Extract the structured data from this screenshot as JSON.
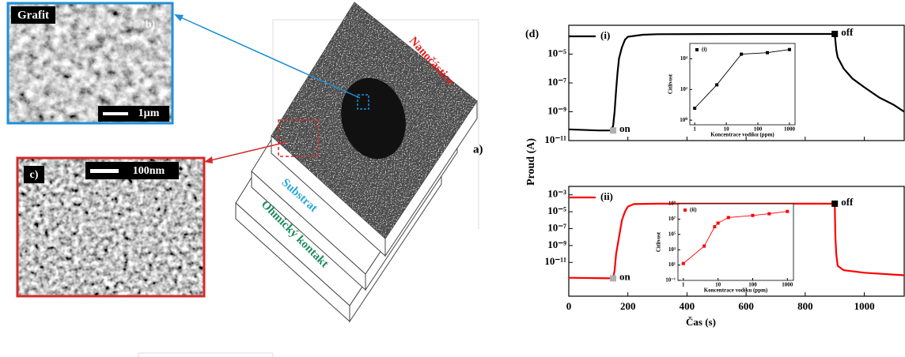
{
  "micrographs": {
    "b": {
      "tag": "Grafit",
      "label": "b)",
      "scale": "1µm"
    },
    "c": {
      "label": "c)",
      "scale": "100nm"
    }
  },
  "device": {
    "label": "a)",
    "layers": [
      "Nanočástice",
      "Substrat",
      "Ohmický kontakt"
    ]
  },
  "figure": {
    "panel_label": "(d)",
    "ylabel": "Proud (A)"
  },
  "chart_data": [
    {
      "type": "line",
      "log_y": true,
      "xtick_labels": false,
      "xlim": [
        0,
        1135
      ],
      "xticks": [
        0,
        200,
        400,
        600,
        800,
        1000
      ],
      "ylim": [
        1e-11,
        0.001
      ],
      "yticks": [
        {
          "value": 1e-11,
          "label": "10⁻¹¹"
        },
        {
          "value": 1e-09,
          "label": "10⁻⁹"
        },
        {
          "value": 1e-07,
          "label": "10⁻⁷"
        },
        {
          "value": 1e-05,
          "label": "10⁻⁵"
        }
      ],
      "x": [
        0,
        100,
        140,
        150,
        155,
        160,
        165,
        170,
        180,
        190,
        200,
        250,
        300,
        600,
        900,
        905,
        910,
        930,
        960,
        1000,
        1050,
        1100,
        1135
      ],
      "series": [
        {
          "name": "(i)",
          "color": "#000000",
          "values": [
            6e-11,
            5e-11,
            5e-11,
            1e-10,
            1e-09,
            3e-08,
            5e-07,
            5e-06,
            3e-05,
            0.0001,
            0.00016,
            0.00022,
            0.00024,
            0.00025,
            0.00025,
            2e-05,
            6e-06,
            1e-06,
            2e-07,
            5e-08,
            1e-08,
            3e-09,
            1e-09
          ]
        }
      ],
      "annotations": [
        {
          "text": "on",
          "x": 150,
          "y": 5e-11,
          "color": "#b0b0b0"
        },
        {
          "text": "off",
          "x": 900,
          "y": 0.00025,
          "color": "#000000"
        }
      ]
    },
    {
      "type": "line",
      "log_y": true,
      "xlabel": "Čas (s)",
      "xlim": [
        0,
        1135
      ],
      "xticks": [
        0,
        200,
        400,
        600,
        800,
        1000
      ],
      "ylim": [
        1e-15,
        0.01
      ],
      "yticks": [
        {
          "value": 1e-11,
          "label": "10⁻¹¹"
        },
        {
          "value": 1e-09,
          "label": "10⁻⁹"
        },
        {
          "value": 1e-07,
          "label": "10⁻⁷"
        },
        {
          "value": 1e-05,
          "label": "10⁻⁵"
        },
        {
          "value": 0.001,
          "label": "10⁻³"
        }
      ],
      "x": [
        0,
        150,
        155,
        160,
        170,
        180,
        190,
        200,
        220,
        300,
        900,
        902,
        905,
        910,
        930,
        1000,
        1135
      ],
      "series": [
        {
          "name": "(ii)",
          "color": "#ff0000",
          "values": [
            1.5e-13,
            1.3e-13,
            1e-12,
            1e-10,
            1e-08,
            1e-06,
            1e-05,
            4e-05,
            8e-05,
            9e-05,
            9e-05,
            1e-08,
            1e-10,
            4e-12,
            1.2e-12,
            6e-13,
            3e-13
          ]
        }
      ],
      "annotations": [
        {
          "text": "on",
          "x": 150,
          "y": 1.3e-13,
          "color": "#b0b0b0"
        },
        {
          "text": "off",
          "x": 900,
          "y": 9e-05,
          "color": "#000000"
        }
      ]
    },
    {
      "type": "line",
      "log_x": true,
      "log_y": true,
      "markers": true,
      "xlabel": "Koncentrace vodíku (ppm)",
      "ylabel": "Citlivost",
      "xlim": [
        0.7,
        1500
      ],
      "xticks": [
        1,
        10,
        100,
        1000
      ],
      "ylim": [
        0.5,
        100000
      ],
      "yticks": [
        {
          "value": 1,
          "label": "10⁰"
        },
        {
          "value": 100,
          "label": "10²"
        },
        {
          "value": 10000,
          "label": "10⁴"
        }
      ],
      "x": [
        1,
        5,
        30,
        200,
        1000
      ],
      "series": [
        {
          "name": "(i)",
          "color": "#000000",
          "values": [
            6,
            200,
            20000,
            25000,
            40000
          ]
        }
      ]
    },
    {
      "type": "line",
      "log_x": true,
      "log_y": true,
      "markers": true,
      "xlabel": "Koncentrace vodíku (ppm)",
      "ylabel": "Citlivost",
      "xlim": [
        0.7,
        1500
      ],
      "xticks": [
        1,
        10,
        100,
        1000
      ],
      "ylim": [
        0.1,
        1000000000
      ],
      "yticks": [
        {
          "value": 0.1,
          "label": "10⁻¹"
        },
        {
          "value": 10,
          "label": "10¹"
        },
        {
          "value": 1000,
          "label": "10³"
        },
        {
          "value": 100000,
          "label": "10⁵"
        },
        {
          "value": 10000000,
          "label": "10⁷"
        },
        {
          "value": 1000000000,
          "label": "10⁹"
        }
      ],
      "x": [
        1,
        4,
        8,
        10,
        20,
        100,
        300,
        1000
      ],
      "series": [
        {
          "name": "(ii)",
          "color": "#ff0000",
          "values": [
            16,
            3000,
            1000000,
            3000000,
            16000000,
            30000000,
            50000000,
            100000000
          ]
        }
      ]
    }
  ]
}
